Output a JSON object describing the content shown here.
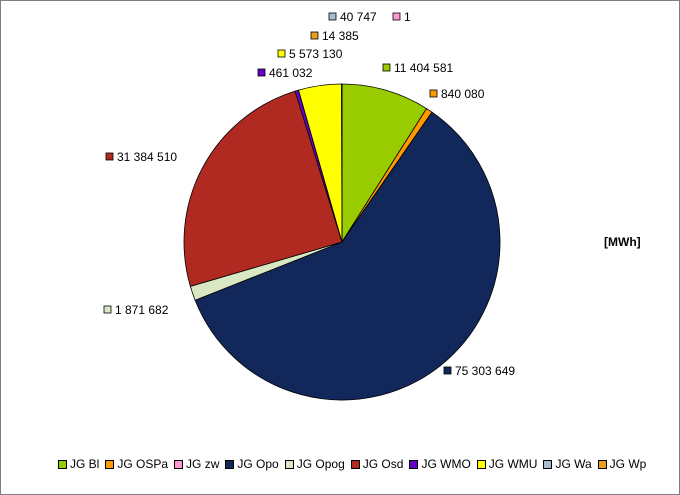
{
  "chart_data": {
    "type": "pie",
    "unit_label": "[MWh]",
    "series": [
      {
        "name": "JG Bl",
        "value": 11404581,
        "label": "11 404 581",
        "color": "#99cc00"
      },
      {
        "name": "JG OSPa",
        "value": 840080,
        "label": "840 080",
        "color": "#ff9900"
      },
      {
        "name": "JG zw",
        "value": 1,
        "label": "1",
        "color": "#ff99cc"
      },
      {
        "name": "JG Opo",
        "value": 75303649,
        "label": "75 303 649",
        "color": "#13285a"
      },
      {
        "name": "JG Opog",
        "value": 1871682,
        "label": "1 871 682",
        "color": "#d9e8c2"
      },
      {
        "name": "JG Osd",
        "value": 31384510,
        "label": "31 384 510",
        "color": "#b02a22"
      },
      {
        "name": "JG WMO",
        "value": 461032,
        "label": "461 032",
        "color": "#6600cc"
      },
      {
        "name": "JG WMU",
        "value": 5573130,
        "label": "5 573 130",
        "color": "#ffff00"
      },
      {
        "name": "JG Wa",
        "value": 40747,
        "label": "40 747",
        "color": "#a6bcd0"
      },
      {
        "name": "JG Wp",
        "value": 14385,
        "label": "14 385",
        "color": "#e6a020"
      }
    ]
  }
}
